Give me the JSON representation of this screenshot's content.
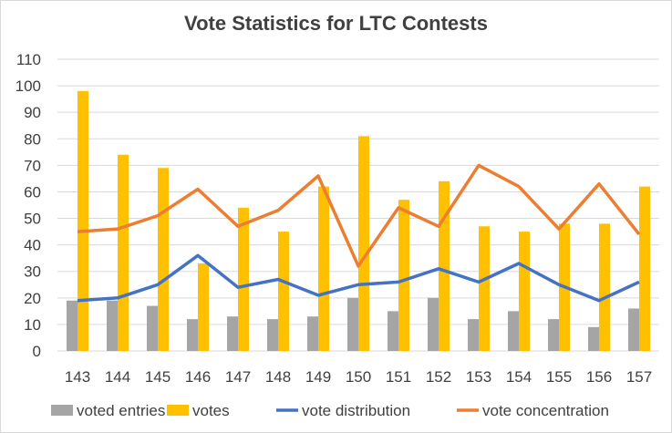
{
  "chart_data": {
    "type": "bar",
    "title": "Vote Statistics for LTC Contests",
    "xlabel": "",
    "ylabel": "",
    "ylim": [
      0,
      110
    ],
    "yticks": [
      0,
      10,
      20,
      30,
      40,
      50,
      60,
      70,
      80,
      90,
      100,
      110
    ],
    "grid": true,
    "legend_position": "bottom",
    "categories": [
      "143",
      "144",
      "145",
      "146",
      "147",
      "148",
      "149",
      "150",
      "151",
      "152",
      "153",
      "154",
      "155",
      "156",
      "157"
    ],
    "series": [
      {
        "name": "voted entries",
        "kind": "bar",
        "color": "#a5a5a5",
        "values": [
          19,
          19,
          17,
          12,
          13,
          12,
          13,
          20,
          15,
          20,
          12,
          15,
          12,
          9,
          16
        ]
      },
      {
        "name": "votes",
        "kind": "bar",
        "color": "#ffc000",
        "values": [
          98,
          74,
          69,
          33,
          54,
          45,
          62,
          81,
          57,
          64,
          47,
          45,
          48,
          48,
          62
        ]
      },
      {
        "name": "vote distribution",
        "kind": "line",
        "color": "#4472c4",
        "values": [
          19,
          20,
          25,
          36,
          24,
          27,
          21,
          25,
          26,
          31,
          26,
          33,
          25,
          19,
          26
        ]
      },
      {
        "name": "vote concentration",
        "kind": "line",
        "color": "#ed7d31",
        "values": [
          45,
          46,
          51,
          61,
          47,
          53,
          66,
          32,
          54,
          47,
          70,
          62,
          46,
          63,
          44
        ]
      }
    ]
  }
}
